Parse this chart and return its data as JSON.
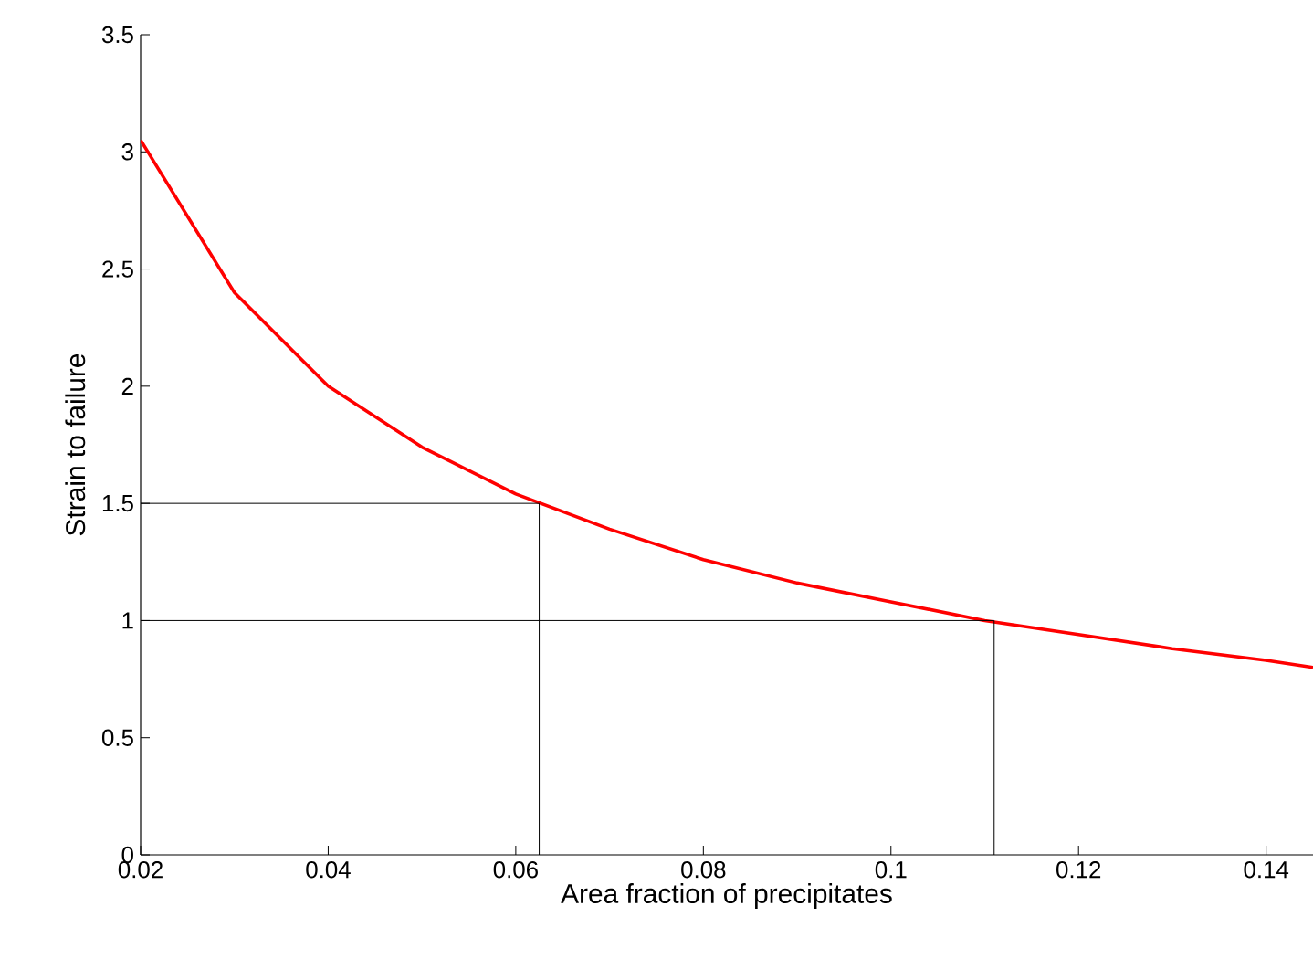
{
  "chart_data": {
    "type": "line",
    "xlabel": "Area fraction of precipitates",
    "ylabel": "Strain to failure",
    "xlim": [
      0.02,
      0.145
    ],
    "ylim": [
      0,
      3.5
    ],
    "xticks": [
      0.02,
      0.04,
      0.06,
      0.08,
      0.1,
      0.12,
      0.14
    ],
    "yticks": [
      0,
      0.5,
      1,
      1.5,
      2,
      2.5,
      3,
      3.5
    ],
    "grid": false,
    "marker": "none",
    "line_style": "solid",
    "series": [
      {
        "color": "#ff0000",
        "x": [
          0.02,
          0.03,
          0.04,
          0.05,
          0.06,
          0.07,
          0.08,
          0.09,
          0.1,
          0.11,
          0.12,
          0.13,
          0.14,
          0.145
        ],
        "values": [
          3.05,
          2.4,
          2.0,
          1.74,
          1.54,
          1.39,
          1.26,
          1.16,
          1.08,
          1.0,
          0.94,
          0.88,
          0.83,
          0.8
        ]
      },
      {
        "color": "#000000",
        "x": [
          0.02,
          0.0625,
          0.0625
        ],
        "values": [
          1.5,
          1.5,
          0
        ]
      },
      {
        "color": "#000000",
        "x": [
          0.02,
          0.111,
          0.111
        ],
        "values": [
          1.0,
          1.0,
          0
        ]
      }
    ]
  }
}
